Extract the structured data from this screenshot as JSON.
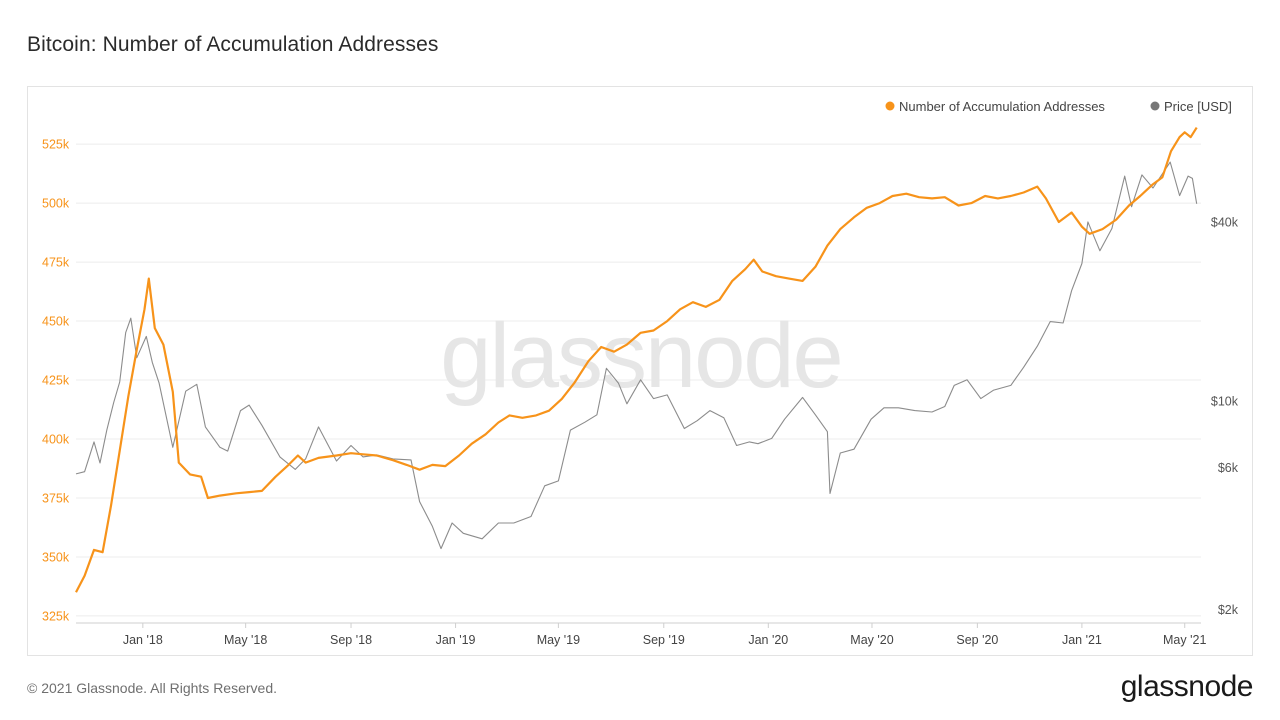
{
  "page": {
    "title": "Bitcoin: Number of Accumulation Addresses",
    "copyright": "© 2021 Glassnode. All Rights Reserved.",
    "logo_text": "glassnode",
    "watermark_text": "glassnode"
  },
  "chart_data": {
    "type": "line",
    "title": "Bitcoin: Number of Accumulation Addresses",
    "legend_position": "top-right",
    "grid": true,
    "x_axis": {
      "type": "date",
      "range": [
        "2017-10-15",
        "2021-05-20"
      ],
      "ticks": [
        {
          "date": "2018-01-01",
          "label": "Jan '18"
        },
        {
          "date": "2018-05-01",
          "label": "May '18"
        },
        {
          "date": "2018-09-01",
          "label": "Sep '18"
        },
        {
          "date": "2019-01-01",
          "label": "Jan '19"
        },
        {
          "date": "2019-05-01",
          "label": "May '19"
        },
        {
          "date": "2019-09-01",
          "label": "Sep '19"
        },
        {
          "date": "2020-01-01",
          "label": "Jan '20"
        },
        {
          "date": "2020-05-01",
          "label": "May '20"
        },
        {
          "date": "2020-09-01",
          "label": "Sep '20"
        },
        {
          "date": "2021-01-01",
          "label": "Jan '21"
        },
        {
          "date": "2021-05-01",
          "label": "May '21"
        }
      ]
    },
    "y_left": {
      "range": [
        322000,
        536500
      ],
      "ticks": [
        {
          "value": 325000,
          "label": "325k"
        },
        {
          "value": 350000,
          "label": "350k"
        },
        {
          "value": 375000,
          "label": "375k"
        },
        {
          "value": 400000,
          "label": "400k"
        },
        {
          "value": 425000,
          "label": "425k"
        },
        {
          "value": 450000,
          "label": "450k"
        },
        {
          "value": 475000,
          "label": "475k"
        },
        {
          "value": 500000,
          "label": "500k"
        },
        {
          "value": 525000,
          "label": "525k"
        }
      ],
      "color": "#f7931a"
    },
    "y_right": {
      "scale": "log",
      "range": [
        1800,
        90000
      ],
      "ticks": [
        {
          "value": 2000,
          "label": "$2k"
        },
        {
          "value": 6000,
          "label": "$6k"
        },
        {
          "value": 10000,
          "label": "$10k"
        },
        {
          "value": 40000,
          "label": "$40k"
        }
      ],
      "color": "#555555"
    },
    "series": [
      {
        "name": "Number of Accumulation Addresses",
        "axis": "left",
        "color": "#f7931a",
        "points": [
          [
            "2017-10-15",
            335000
          ],
          [
            "2017-10-25",
            342000
          ],
          [
            "2017-11-05",
            353000
          ],
          [
            "2017-11-15",
            352000
          ],
          [
            "2017-11-25",
            372000
          ],
          [
            "2017-12-05",
            395000
          ],
          [
            "2017-12-15",
            418000
          ],
          [
            "2017-12-25",
            438000
          ],
          [
            "2018-01-03",
            455000
          ],
          [
            "2018-01-08",
            468000
          ],
          [
            "2018-01-15",
            447000
          ],
          [
            "2018-01-25",
            440000
          ],
          [
            "2018-02-05",
            420000
          ],
          [
            "2018-02-12",
            390000
          ],
          [
            "2018-02-25",
            385000
          ],
          [
            "2018-03-10",
            384000
          ],
          [
            "2018-03-18",
            375000
          ],
          [
            "2018-04-01",
            376000
          ],
          [
            "2018-04-20",
            377000
          ],
          [
            "2018-05-05",
            377500
          ],
          [
            "2018-05-20",
            378000
          ],
          [
            "2018-06-05",
            384000
          ],
          [
            "2018-06-20",
            389000
          ],
          [
            "2018-07-01",
            393000
          ],
          [
            "2018-07-10",
            390000
          ],
          [
            "2018-07-25",
            392000
          ],
          [
            "2018-08-15",
            393000
          ],
          [
            "2018-09-01",
            394000
          ],
          [
            "2018-09-15",
            393500
          ],
          [
            "2018-10-01",
            393000
          ],
          [
            "2018-10-20",
            391000
          ],
          [
            "2018-11-05",
            389000
          ],
          [
            "2018-11-20",
            387000
          ],
          [
            "2018-12-05",
            389000
          ],
          [
            "2018-12-20",
            388500
          ],
          [
            "2019-01-05",
            393000
          ],
          [
            "2019-01-20",
            398000
          ],
          [
            "2019-02-05",
            402000
          ],
          [
            "2019-02-20",
            407000
          ],
          [
            "2019-03-05",
            410000
          ],
          [
            "2019-03-20",
            409000
          ],
          [
            "2019-04-05",
            410000
          ],
          [
            "2019-04-20",
            412000
          ],
          [
            "2019-05-05",
            417000
          ],
          [
            "2019-05-20",
            424000
          ],
          [
            "2019-06-05",
            433000
          ],
          [
            "2019-06-20",
            439000
          ],
          [
            "2019-07-05",
            437000
          ],
          [
            "2019-07-20",
            440000
          ],
          [
            "2019-08-05",
            445000
          ],
          [
            "2019-08-20",
            446000
          ],
          [
            "2019-09-05",
            450000
          ],
          [
            "2019-09-20",
            455000
          ],
          [
            "2019-10-05",
            458000
          ],
          [
            "2019-10-20",
            456000
          ],
          [
            "2019-11-05",
            459000
          ],
          [
            "2019-11-20",
            467000
          ],
          [
            "2019-12-05",
            472000
          ],
          [
            "2019-12-15",
            476000
          ],
          [
            "2019-12-25",
            471000
          ],
          [
            "2020-01-10",
            469000
          ],
          [
            "2020-01-25",
            468000
          ],
          [
            "2020-02-10",
            467000
          ],
          [
            "2020-02-25",
            473000
          ],
          [
            "2020-03-10",
            482000
          ],
          [
            "2020-03-25",
            489000
          ],
          [
            "2020-04-10",
            494000
          ],
          [
            "2020-04-25",
            498000
          ],
          [
            "2020-05-10",
            500000
          ],
          [
            "2020-05-25",
            503000
          ],
          [
            "2020-06-10",
            504000
          ],
          [
            "2020-06-25",
            502500
          ],
          [
            "2020-07-10",
            502000
          ],
          [
            "2020-07-25",
            502500
          ],
          [
            "2020-08-10",
            499000
          ],
          [
            "2020-08-25",
            500000
          ],
          [
            "2020-09-10",
            503000
          ],
          [
            "2020-09-25",
            502000
          ],
          [
            "2020-10-10",
            503000
          ],
          [
            "2020-10-25",
            504500
          ],
          [
            "2020-11-10",
            507000
          ],
          [
            "2020-11-20",
            502000
          ],
          [
            "2020-12-05",
            492000
          ],
          [
            "2020-12-20",
            496000
          ],
          [
            "2021-01-01",
            490000
          ],
          [
            "2021-01-10",
            487000
          ],
          [
            "2021-01-25",
            489000
          ],
          [
            "2021-02-10",
            493000
          ],
          [
            "2021-02-25",
            499000
          ],
          [
            "2021-03-10",
            503000
          ],
          [
            "2021-03-25",
            508000
          ],
          [
            "2021-04-05",
            511000
          ],
          [
            "2021-04-15",
            522000
          ],
          [
            "2021-04-25",
            528000
          ],
          [
            "2021-05-01",
            530000
          ],
          [
            "2021-05-08",
            528000
          ],
          [
            "2021-05-15",
            532000
          ]
        ]
      },
      {
        "name": "Price [USD]",
        "axis": "right",
        "color": "#8c8c8c",
        "points": [
          [
            "2017-10-15",
            5700
          ],
          [
            "2017-10-25",
            5800
          ],
          [
            "2017-11-05",
            7300
          ],
          [
            "2017-11-12",
            6200
          ],
          [
            "2017-11-20",
            8000
          ],
          [
            "2017-11-28",
            9900
          ],
          [
            "2017-12-05",
            11600
          ],
          [
            "2017-12-12",
            17000
          ],
          [
            "2017-12-18",
            19000
          ],
          [
            "2017-12-25",
            14000
          ],
          [
            "2018-01-05",
            16500
          ],
          [
            "2018-01-12",
            13500
          ],
          [
            "2018-01-20",
            11500
          ],
          [
            "2018-02-05",
            7000
          ],
          [
            "2018-02-20",
            10800
          ],
          [
            "2018-03-05",
            11400
          ],
          [
            "2018-03-15",
            8200
          ],
          [
            "2018-04-01",
            7000
          ],
          [
            "2018-04-10",
            6800
          ],
          [
            "2018-04-25",
            9300
          ],
          [
            "2018-05-05",
            9700
          ],
          [
            "2018-05-20",
            8300
          ],
          [
            "2018-06-10",
            6500
          ],
          [
            "2018-06-28",
            5900
          ],
          [
            "2018-07-10",
            6400
          ],
          [
            "2018-07-25",
            8200
          ],
          [
            "2018-08-15",
            6300
          ],
          [
            "2018-09-01",
            7100
          ],
          [
            "2018-09-15",
            6500
          ],
          [
            "2018-10-01",
            6600
          ],
          [
            "2018-10-20",
            6400
          ],
          [
            "2018-11-10",
            6350
          ],
          [
            "2018-11-20",
            4600
          ],
          [
            "2018-12-05",
            3800
          ],
          [
            "2018-12-15",
            3200
          ],
          [
            "2018-12-28",
            3900
          ],
          [
            "2019-01-10",
            3600
          ],
          [
            "2019-02-01",
            3450
          ],
          [
            "2019-02-20",
            3900
          ],
          [
            "2019-03-10",
            3900
          ],
          [
            "2019-03-30",
            4100
          ],
          [
            "2019-04-15",
            5200
          ],
          [
            "2019-05-01",
            5400
          ],
          [
            "2019-05-15",
            8000
          ],
          [
            "2019-06-01",
            8500
          ],
          [
            "2019-06-15",
            9000
          ],
          [
            "2019-06-26",
            12900
          ],
          [
            "2019-07-10",
            11500
          ],
          [
            "2019-07-20",
            9800
          ],
          [
            "2019-08-05",
            11800
          ],
          [
            "2019-08-20",
            10200
          ],
          [
            "2019-09-05",
            10500
          ],
          [
            "2019-09-25",
            8100
          ],
          [
            "2019-10-10",
            8600
          ],
          [
            "2019-10-25",
            9300
          ],
          [
            "2019-11-10",
            8800
          ],
          [
            "2019-11-25",
            7100
          ],
          [
            "2019-12-10",
            7300
          ],
          [
            "2019-12-20",
            7200
          ],
          [
            "2020-01-05",
            7500
          ],
          [
            "2020-01-20",
            8700
          ],
          [
            "2020-02-10",
            10300
          ],
          [
            "2020-02-25",
            9000
          ],
          [
            "2020-03-10",
            7900
          ],
          [
            "2020-03-13",
            4900
          ],
          [
            "2020-03-25",
            6700
          ],
          [
            "2020-04-10",
            6900
          ],
          [
            "2020-04-30",
            8700
          ],
          [
            "2020-05-15",
            9500
          ],
          [
            "2020-06-01",
            9500
          ],
          [
            "2020-06-20",
            9300
          ],
          [
            "2020-07-10",
            9200
          ],
          [
            "2020-07-25",
            9600
          ],
          [
            "2020-08-05",
            11300
          ],
          [
            "2020-08-20",
            11800
          ],
          [
            "2020-09-05",
            10200
          ],
          [
            "2020-09-20",
            10900
          ],
          [
            "2020-10-10",
            11300
          ],
          [
            "2020-10-25",
            13000
          ],
          [
            "2020-11-10",
            15300
          ],
          [
            "2020-11-25",
            18500
          ],
          [
            "2020-12-10",
            18300
          ],
          [
            "2020-12-20",
            23500
          ],
          [
            "2021-01-01",
            29000
          ],
          [
            "2021-01-08",
            40000
          ],
          [
            "2021-01-22",
            32000
          ],
          [
            "2021-02-05",
            38000
          ],
          [
            "2021-02-20",
            57000
          ],
          [
            "2021-02-28",
            45000
          ],
          [
            "2021-03-12",
            57500
          ],
          [
            "2021-03-25",
            52000
          ],
          [
            "2021-04-05",
            58000
          ],
          [
            "2021-04-14",
            63500
          ],
          [
            "2021-04-25",
            49000
          ],
          [
            "2021-05-05",
            57000
          ],
          [
            "2021-05-10",
            56000
          ],
          [
            "2021-05-15",
            46000
          ]
        ]
      }
    ]
  }
}
